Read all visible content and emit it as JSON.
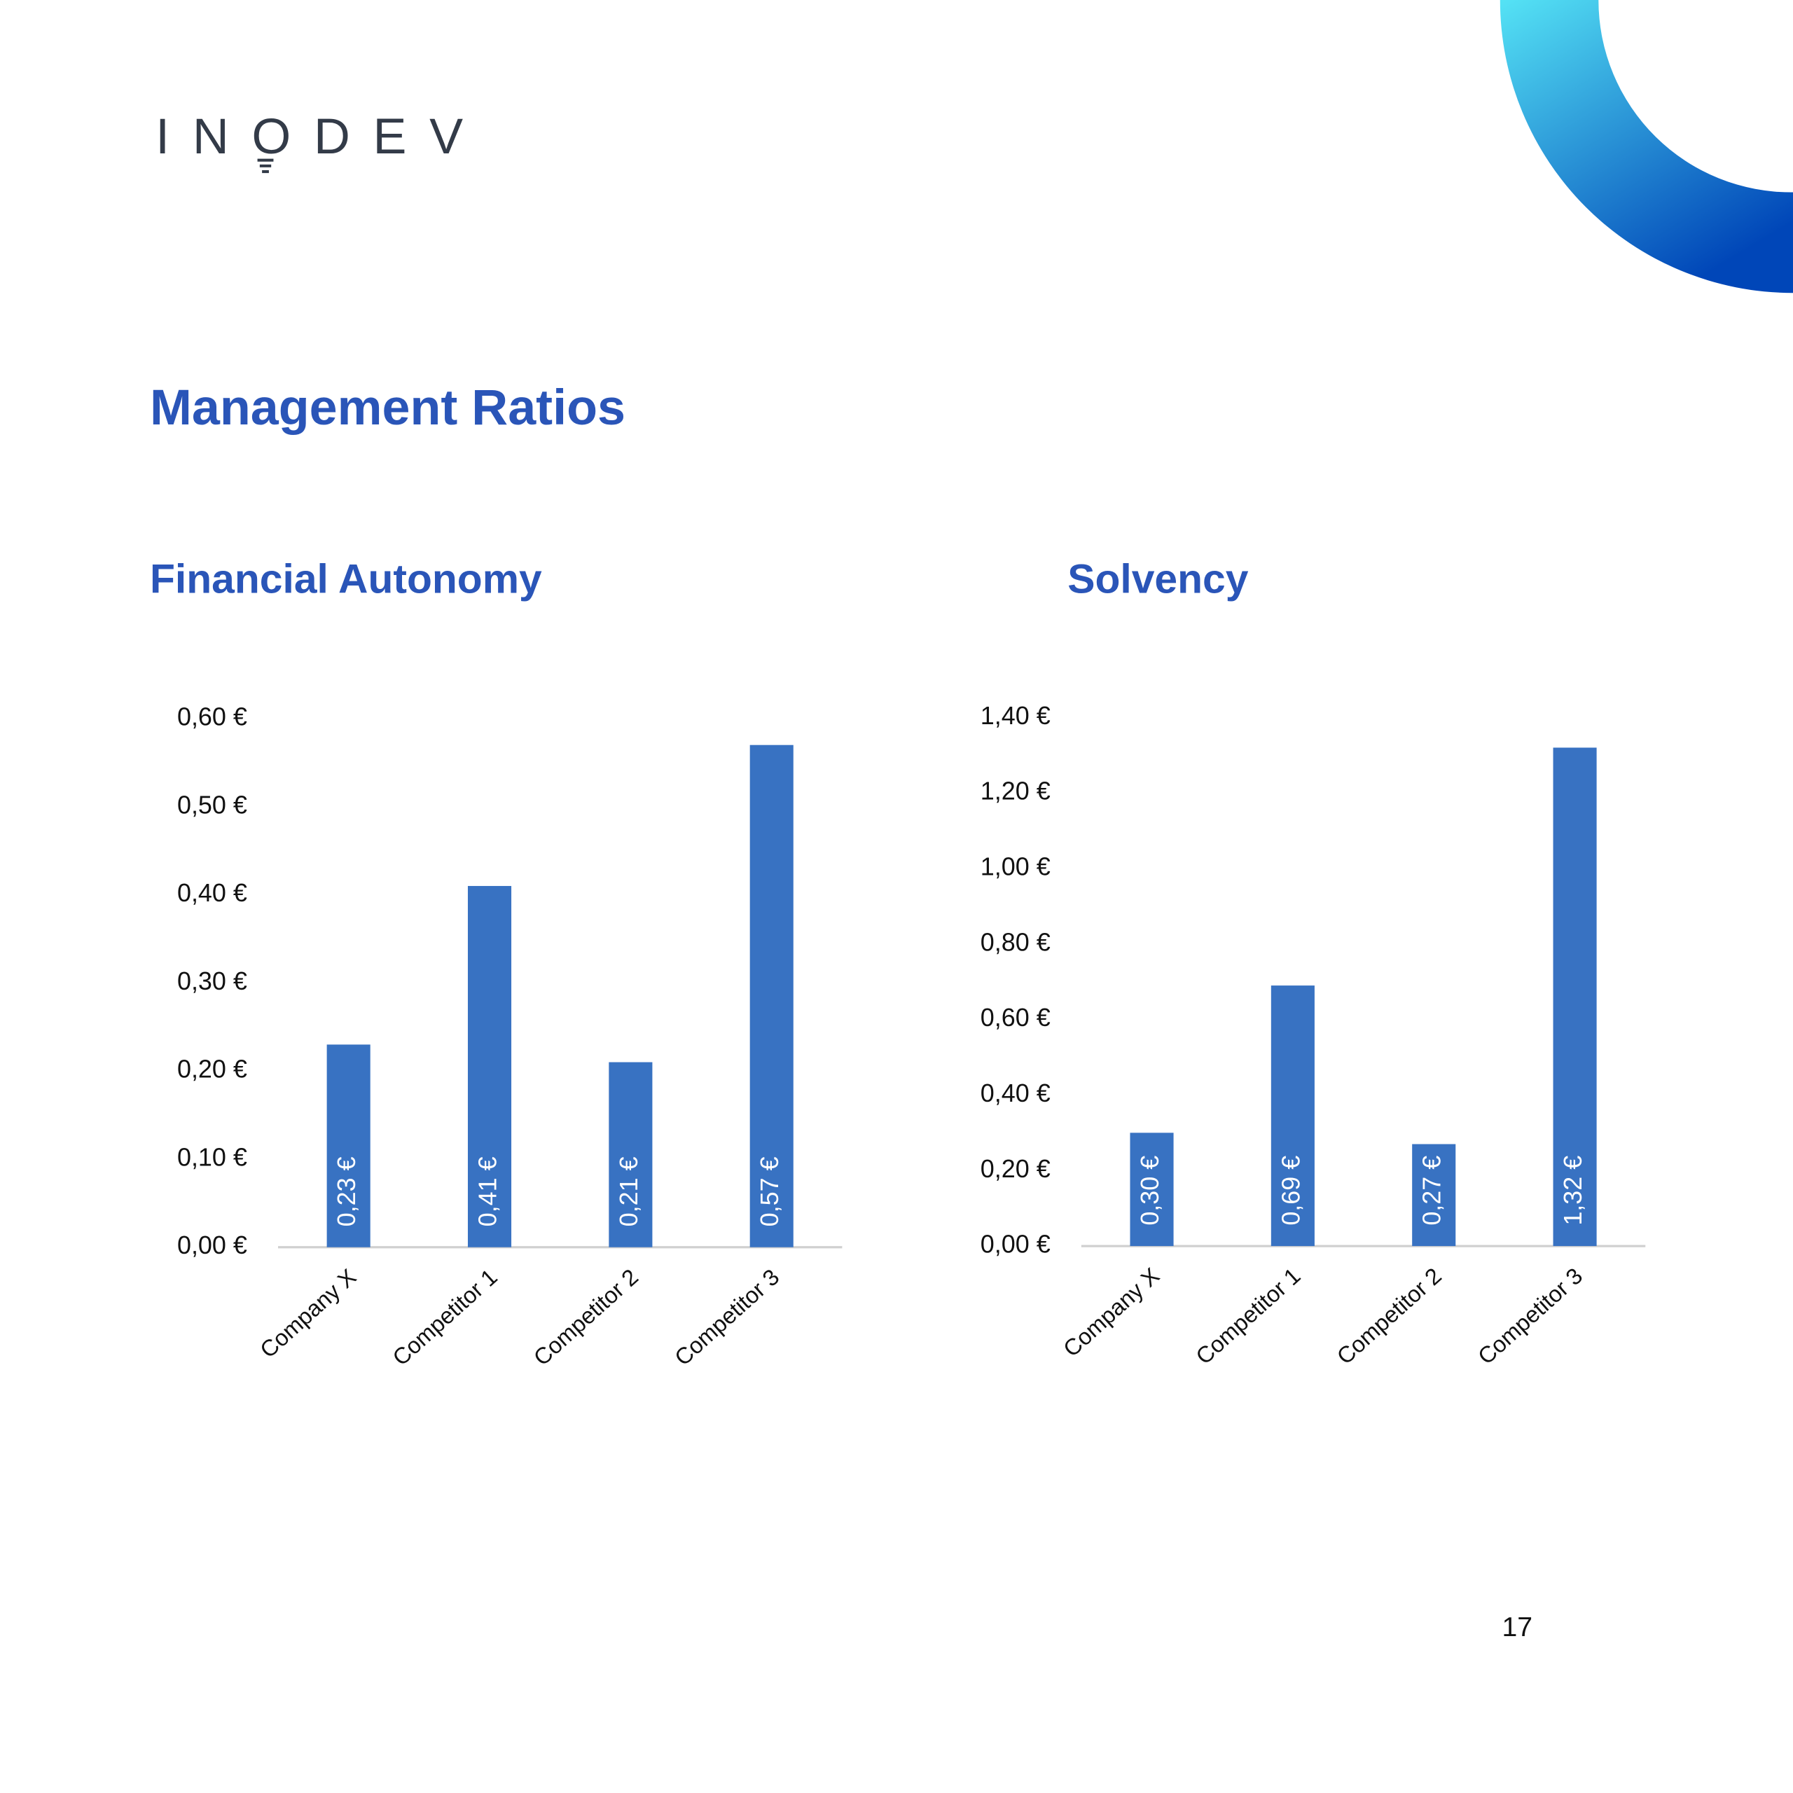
{
  "logo": "INODEV",
  "heading": "Management Ratios",
  "page_number": "17",
  "chart_data": [
    {
      "type": "bar",
      "title": "Financial Autonomy",
      "categories": [
        "Company X",
        "Competitor 1",
        "Competitor 2",
        "Competitor 3"
      ],
      "values": [
        0.23,
        0.41,
        0.21,
        0.57
      ],
      "value_labels": [
        "0,23 €",
        "0,41 €",
        "0,21 €",
        "0,57 €"
      ],
      "color": "#3872c2",
      "ylim": [
        0,
        0.6
      ],
      "yticks": [
        {
          "value": 0,
          "label": "0,00 €"
        },
        {
          "value": 0.1,
          "label": "0,10 €"
        },
        {
          "value": 0.2,
          "label": "0,20 €"
        },
        {
          "value": 0.3,
          "label": "0,30 €"
        },
        {
          "value": 0.4,
          "label": "0,40 €"
        },
        {
          "value": 0.5,
          "label": "0,50 €"
        },
        {
          "value": 0.6,
          "label": "0,60 €"
        }
      ]
    },
    {
      "type": "bar",
      "title": "Solvency",
      "categories": [
        "Company X",
        "Competitor 1",
        "Competitor 2",
        "Competitor 3"
      ],
      "values": [
        0.3,
        0.69,
        0.27,
        1.32
      ],
      "value_labels": [
        "0,30 €",
        "0,69 €",
        "0,27 €",
        "1,32 €"
      ],
      "color": "#3872c2",
      "ylim": [
        0,
        1.4
      ],
      "yticks": [
        {
          "value": 0,
          "label": "0,00 €"
        },
        {
          "value": 0.2,
          "label": "0,20 €"
        },
        {
          "value": 0.4,
          "label": "0,40 €"
        },
        {
          "value": 0.6,
          "label": "0,60 €"
        },
        {
          "value": 0.8,
          "label": "0,80 €"
        },
        {
          "value": 1.0,
          "label": "1,00 €"
        },
        {
          "value": 1.2,
          "label": "1,20 €"
        },
        {
          "value": 1.4,
          "label": "1,40 €"
        }
      ]
    }
  ]
}
